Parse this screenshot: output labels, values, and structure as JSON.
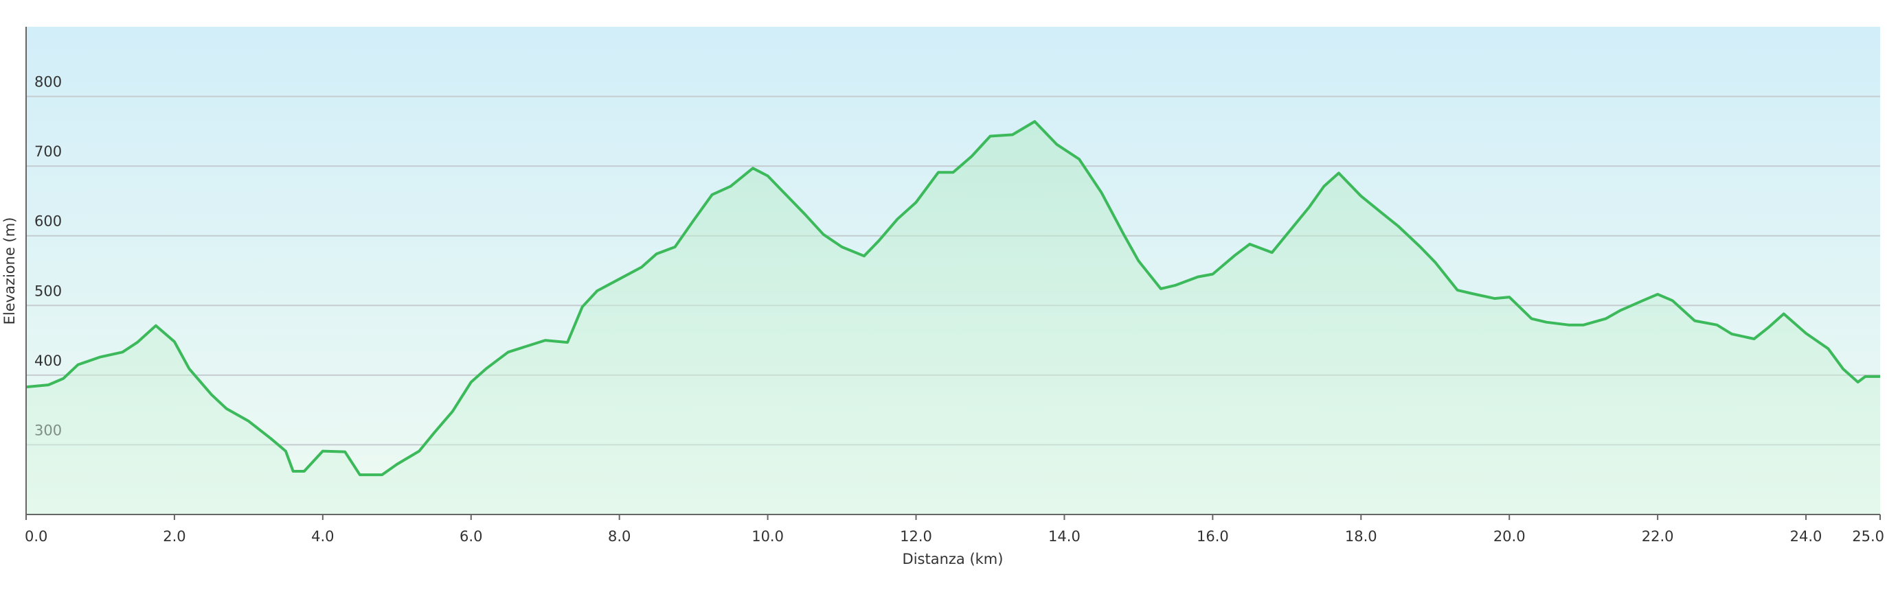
{
  "chart_data": {
    "type": "area",
    "x_label": "Distanza  (km)",
    "y_label": "Elevazione (m)",
    "x": [
      0,
      0.3,
      0.5,
      0.7,
      1.0,
      1.3,
      1.5,
      1.75,
      2.0,
      2.2,
      2.5,
      2.7,
      3.0,
      3.3,
      3.5,
      3.6,
      3.75,
      4.0,
      4.3,
      4.5,
      4.8,
      5.0,
      5.3,
      5.5,
      5.75,
      6.0,
      6.2,
      6.5,
      7.0,
      7.3,
      7.5,
      7.7,
      8.0,
      8.3,
      8.5,
      8.75,
      9.0,
      9.25,
      9.5,
      9.8,
      10.0,
      10.3,
      10.5,
      10.75,
      11.0,
      11.3,
      11.5,
      11.75,
      12.0,
      12.3,
      12.5,
      12.75,
      13.0,
      13.3,
      13.6,
      13.9,
      14.2,
      14.5,
      14.8,
      15.0,
      15.3,
      15.5,
      15.8,
      16.0,
      16.3,
      16.5,
      16.8,
      17.0,
      17.3,
      17.5,
      17.7,
      18.0,
      18.3,
      18.5,
      18.8,
      19.0,
      19.3,
      19.5,
      19.8,
      20.0,
      20.3,
      20.5,
      20.8,
      21.0,
      21.3,
      21.5,
      21.8,
      22.0,
      22.2,
      22.5,
      22.8,
      23.0,
      23.3,
      23.5,
      23.7,
      24.0,
      24.3,
      24.5,
      24.7,
      24.8,
      25.0
    ],
    "values": [
      383,
      386,
      395,
      415,
      426,
      433,
      447,
      471,
      448,
      409,
      372,
      352,
      334,
      309,
      291,
      262,
      262,
      291,
      290,
      257,
      257,
      272,
      291,
      317,
      348,
      390,
      409,
      433,
      450,
      447,
      498,
      521,
      538,
      555,
      574,
      584,
      622,
      659,
      671,
      697,
      686,
      653,
      631,
      602,
      584,
      571,
      593,
      624,
      648,
      691,
      691,
      714,
      743,
      745,
      764,
      731,
      710,
      662,
      602,
      564,
      524,
      529,
      541,
      545,
      572,
      588,
      576,
      602,
      641,
      671,
      690,
      657,
      631,
      614,
      584,
      562,
      522,
      517,
      510,
      512,
      481,
      476,
      472,
      472,
      481,
      493,
      507,
      516,
      507,
      478,
      472,
      459,
      452,
      469,
      488,
      460,
      438,
      409,
      390,
      398,
      398
    ],
    "color": "#3cb95a",
    "xlim": [
      0,
      25
    ],
    "ylim": [
      200,
      900
    ],
    "xticks": [
      {
        "value": 0,
        "label": "0.0"
      },
      {
        "value": 2,
        "label": "2.0"
      },
      {
        "value": 4,
        "label": "4.0"
      },
      {
        "value": 6,
        "label": "6.0"
      },
      {
        "value": 8,
        "label": "8.0"
      },
      {
        "value": 10,
        "label": "10.0"
      },
      {
        "value": 12,
        "label": "12.0"
      },
      {
        "value": 14,
        "label": "14.0"
      },
      {
        "value": 16,
        "label": "16.0"
      },
      {
        "value": 18,
        "label": "18.0"
      },
      {
        "value": 20,
        "label": "20.0"
      },
      {
        "value": 22,
        "label": "22.0"
      },
      {
        "value": 24,
        "label": "24.0"
      },
      {
        "value": 25,
        "label": "25.0"
      }
    ],
    "yticks": [
      300,
      400,
      500,
      600,
      700,
      800
    ],
    "grid": true
  }
}
